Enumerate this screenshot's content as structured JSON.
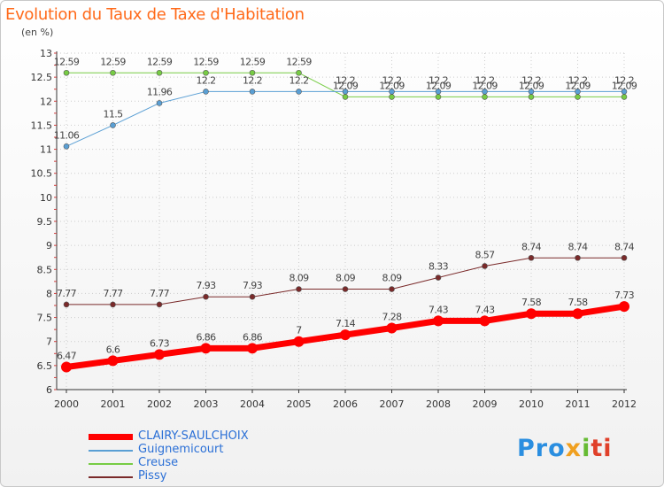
{
  "chart_data": {
    "type": "line",
    "title": "Evolution du Taux de Taxe d'Habitation",
    "subtitle": "(en %)",
    "xlabel": "",
    "ylabel": "",
    "categories": [
      "2000",
      "2001",
      "2002",
      "2003",
      "2004",
      "2005",
      "2006",
      "2007",
      "2008",
      "2009",
      "2010",
      "2011",
      "2012"
    ],
    "ylim": [
      6,
      13
    ],
    "yticks": [
      "6",
      "6.5",
      "7",
      "7.5",
      "8",
      "8.5",
      "9",
      "9.5",
      "10",
      "10.5",
      "11",
      "11.5",
      "12",
      "12.5",
      "13"
    ],
    "grid": true,
    "legend_position": "bottom-left",
    "series": [
      {
        "name": "CLAIRY-SAULCHOIX",
        "color": "#ff0000",
        "width": 7,
        "values": [
          6.47,
          6.6,
          6.73,
          6.86,
          6.86,
          7,
          7.14,
          7.28,
          7.43,
          7.43,
          7.58,
          7.58,
          7.73
        ],
        "labels": [
          "6.47",
          "6.6",
          "6.73",
          "6.86",
          "6.86",
          "7",
          "7.14",
          "7.28",
          "7.43",
          "7.43",
          "7.58",
          "7.58",
          "7.73"
        ]
      },
      {
        "name": "Guignemicourt",
        "color": "#5a9fd4",
        "width": 1,
        "values": [
          11.06,
          11.5,
          11.96,
          12.2,
          12.2,
          12.2,
          12.2,
          12.2,
          12.2,
          12.2,
          12.2,
          12.2,
          12.2
        ],
        "labels": [
          "11.06",
          "11.5",
          "11.96",
          "12.2",
          "12.2",
          "12.2",
          "12.2",
          "12.2",
          "12.2",
          "12.2",
          "12.2",
          "12.2",
          "12.2"
        ]
      },
      {
        "name": "Creuse",
        "color": "#77cc44",
        "width": 1,
        "values": [
          12.59,
          12.59,
          12.59,
          12.59,
          12.59,
          12.59,
          12.09,
          12.09,
          12.09,
          12.09,
          12.09,
          12.09,
          12.09
        ],
        "labels": [
          "12.59",
          "12.59",
          "12.59",
          "12.59",
          "12.59",
          "12.59",
          "12.09",
          "12.09",
          "12.09",
          "12.09",
          "12.09",
          "12.09",
          "12.09"
        ]
      },
      {
        "name": "Pissy",
        "color": "#7a2a2a",
        "width": 1,
        "values": [
          7.77,
          7.77,
          7.77,
          7.93,
          7.93,
          8.09,
          8.09,
          8.09,
          8.33,
          8.57,
          8.74,
          8.74,
          8.74
        ],
        "labels": [
          "7.77",
          "7.77",
          "7.77",
          "7.93",
          "7.93",
          "8.09",
          "8.09",
          "8.09",
          "8.33",
          "8.57",
          "8.74",
          "8.74",
          "8.74"
        ]
      }
    ]
  },
  "legend": [
    {
      "label": "CLAIRY-SAULCHOIX",
      "color": "#ff0000"
    },
    {
      "label": "Guignemicourt",
      "color": "#5a9fd4"
    },
    {
      "label": "Creuse",
      "color": "#77cc44"
    },
    {
      "label": "Pissy",
      "color": "#7a2a2a"
    }
  ],
  "logo": {
    "p1": "Pro",
    "p2": "x",
    "p3": "i",
    "p4": "ti"
  }
}
